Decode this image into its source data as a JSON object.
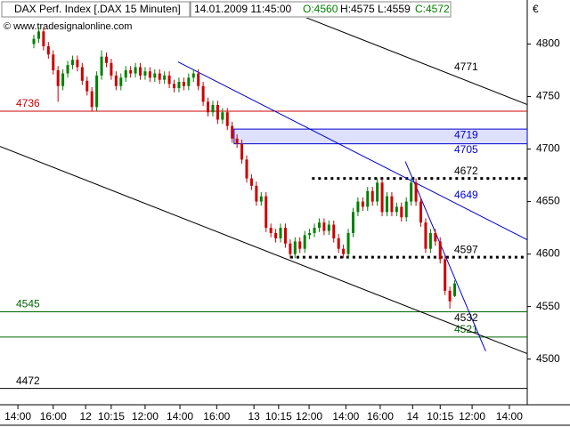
{
  "chart_data": {
    "type": "candlestick",
    "title": "DAX Perf. Index [.DAX  15 Minuten]",
    "datetime": "14.01.2009 11:45:00",
    "quote": [
      {
        "value": 4560,
        "label": "O:4560"
      },
      {
        "value": 4575,
        "label": "H:4575"
      },
      {
        "value": 4559,
        "label": "L:4559"
      },
      {
        "value": 4572,
        "label": "C:4572"
      }
    ],
    "copyright": "© www.tradesignalonline.com",
    "currency": "€",
    "up_color": "#008000",
    "down_color": "#cc0000",
    "xlim": [
      0,
      109
    ],
    "ylim": [
      4459,
      4825
    ],
    "yticks": [
      4500,
      4550,
      4600,
      4650,
      4700,
      4750,
      4800
    ],
    "xticks": [
      {
        "value": 3.7,
        "label": "14:00"
      },
      {
        "value": 11,
        "label": "16:00"
      },
      {
        "value": 17.7,
        "label": "12"
      },
      {
        "value": 23,
        "label": "10:15"
      },
      {
        "value": 30,
        "label": "12:00"
      },
      {
        "value": 37.2,
        "label": "14:00"
      },
      {
        "value": 44.8,
        "label": "16:00"
      },
      {
        "value": 52.5,
        "label": "13"
      },
      {
        "value": 57.6,
        "label": "10:15"
      },
      {
        "value": 63.9,
        "label": "12:00"
      },
      {
        "value": 71.5,
        "label": "14:00"
      },
      {
        "value": 78.6,
        "label": "16:00"
      },
      {
        "value": 85.3,
        "label": "14"
      },
      {
        "value": 91,
        "label": "10:15"
      },
      {
        "value": 97.6,
        "label": "12:00"
      },
      {
        "value": 105.3,
        "label": "14:00"
      }
    ],
    "x": [
      7,
      8,
      9,
      10,
      11,
      12,
      13,
      14,
      15,
      16,
      17,
      18,
      19,
      20,
      21,
      22,
      23,
      24,
      25,
      26,
      27,
      28,
      29,
      30,
      31,
      32,
      33,
      34,
      35,
      36,
      37,
      38,
      39,
      40,
      41,
      42,
      43,
      44,
      45,
      46,
      47,
      48,
      49,
      50,
      51,
      52,
      53,
      54,
      55,
      56,
      57,
      58,
      59,
      60,
      61,
      62,
      63,
      64,
      65,
      66,
      67,
      68,
      69,
      70,
      71,
      72,
      73,
      74,
      75,
      76,
      77,
      78,
      79,
      80,
      81,
      82,
      83,
      84,
      85,
      86,
      87,
      88,
      89,
      90,
      91,
      92,
      93,
      94
    ],
    "open": [
      4800,
      4805,
      4812,
      4798,
      4790,
      4775,
      4760,
      4772,
      4780,
      4785,
      4778,
      4765,
      4755,
      4740,
      4770,
      4788,
      4782,
      4770,
      4760,
      4768,
      4775,
      4772,
      4778,
      4770,
      4774,
      4768,
      4772,
      4766,
      4770,
      4762,
      4758,
      4764,
      4760,
      4768,
      4772,
      4760,
      4745,
      4735,
      4742,
      4728,
      4735,
      4722,
      4710,
      4705,
      4690,
      4672,
      4665,
      4650,
      4655,
      4625,
      4620,
      4615,
      4625,
      4610,
      4600,
      4612,
      4605,
      4618,
      4620,
      4625,
      4630,
      4622,
      4628,
      4615,
      4605,
      4600,
      4620,
      4640,
      4650,
      4645,
      4660,
      4650,
      4668,
      4640,
      4655,
      4640,
      4645,
      4635,
      4650,
      4668,
      4650,
      4630,
      4605,
      4620,
      4612,
      4595,
      4565,
      4560
    ],
    "high": [
      4809,
      4816,
      4816,
      4802,
      4794,
      4779,
      4776,
      4784,
      4789,
      4789,
      4782,
      4769,
      4759,
      4774,
      4794,
      4792,
      4786,
      4774,
      4772,
      4779,
      4779,
      4782,
      4782,
      4778,
      4778,
      4776,
      4776,
      4774,
      4774,
      4766,
      4768,
      4768,
      4772,
      4776,
      4776,
      4764,
      4749,
      4746,
      4746,
      4739,
      4739,
      4726,
      4714,
      4709,
      4694,
      4676,
      4669,
      4659,
      4659,
      4629,
      4624,
      4629,
      4629,
      4614,
      4616,
      4616,
      4622,
      4624,
      4629,
      4634,
      4634,
      4632,
      4632,
      4619,
      4609,
      4624,
      4644,
      4654,
      4654,
      4664,
      4664,
      4672,
      4672,
      4659,
      4659,
      4649,
      4649,
      4654,
      4672,
      4672,
      4654,
      4634,
      4624,
      4624,
      4616,
      4599,
      4569,
      4575
    ],
    "low": [
      4796,
      4801,
      4794,
      4786,
      4771,
      4745,
      4756,
      4768,
      4776,
      4774,
      4761,
      4751,
      4736,
      4736,
      4766,
      4778,
      4766,
      4756,
      4756,
      4764,
      4768,
      4768,
      4766,
      4766,
      4764,
      4764,
      4762,
      4762,
      4758,
      4754,
      4754,
      4756,
      4756,
      4764,
      4756,
      4741,
      4731,
      4731,
      4724,
      4724,
      4718,
      4706,
      4701,
      4686,
      4668,
      4661,
      4646,
      4646,
      4621,
      4616,
      4611,
      4611,
      4606,
      4596,
      4596,
      4601,
      4601,
      4614,
      4616,
      4621,
      4618,
      4618,
      4611,
      4601,
      4596,
      4596,
      4616,
      4636,
      4641,
      4641,
      4646,
      4646,
      4636,
      4636,
      4636,
      4636,
      4631,
      4631,
      4646,
      4646,
      4626,
      4601,
      4601,
      4608,
      4591,
      4561,
      4548,
      4559
    ],
    "close": [
      4805,
      4812,
      4798,
      4790,
      4775,
      4760,
      4772,
      4780,
      4785,
      4778,
      4765,
      4755,
      4740,
      4770,
      4788,
      4782,
      4770,
      4760,
      4768,
      4775,
      4772,
      4778,
      4770,
      4774,
      4768,
      4772,
      4766,
      4770,
      4762,
      4758,
      4764,
      4760,
      4768,
      4772,
      4760,
      4745,
      4735,
      4742,
      4728,
      4735,
      4722,
      4710,
      4705,
      4690,
      4672,
      4665,
      4650,
      4655,
      4625,
      4620,
      4615,
      4625,
      4610,
      4600,
      4612,
      4605,
      4618,
      4620,
      4625,
      4630,
      4622,
      4628,
      4615,
      4605,
      4600,
      4620,
      4640,
      4650,
      4645,
      4660,
      4650,
      4668,
      4640,
      4655,
      4640,
      4645,
      4635,
      4650,
      4668,
      4650,
      4630,
      4605,
      4620,
      4612,
      4595,
      4565,
      4555,
      4572
    ],
    "levels": [
      {
        "value": 4736,
        "color": "#cc0000",
        "side": "left"
      },
      {
        "value": 4545,
        "color": "#006600",
        "side": "left"
      },
      {
        "value": 4472,
        "color": "#000000",
        "side": "left"
      },
      {
        "value": 4521,
        "color": "#006600",
        "side": "right"
      },
      {
        "value": 4672,
        "color": "#000000",
        "side": "right",
        "dotted": true,
        "x_start": 64.5
      },
      {
        "value": 4597,
        "color": "#000000",
        "side": "right",
        "dotted": true,
        "x_start": 60
      }
    ],
    "band": {
      "values": [
        4719,
        4705
      ],
      "color": "#0000cc",
      "x_start": 48.4
    },
    "trendlines": [
      {
        "x": [
          60.8,
          109
        ],
        "y": [
          4829.7,
          4742.4
        ],
        "color": "#000000"
      },
      {
        "x": [
          0,
          109
        ],
        "y": [
          4702.5,
          4505.1
        ],
        "color": "#000000"
      },
      {
        "x": [
          36.8,
          109
        ],
        "y": [
          4783,
          4613.6
        ],
        "color": "#0000cc"
      },
      {
        "x": [
          83.8,
          100.4
        ],
        "y": [
          4688.1,
          4507.6
        ],
        "color": "#0000cc"
      }
    ],
    "line_labels": [
      {
        "value": 4771,
        "color": "#000000"
      },
      {
        "value": 4649,
        "color": "#0000cc"
      },
      {
        "value": 4532,
        "color": "#000000"
      }
    ]
  }
}
